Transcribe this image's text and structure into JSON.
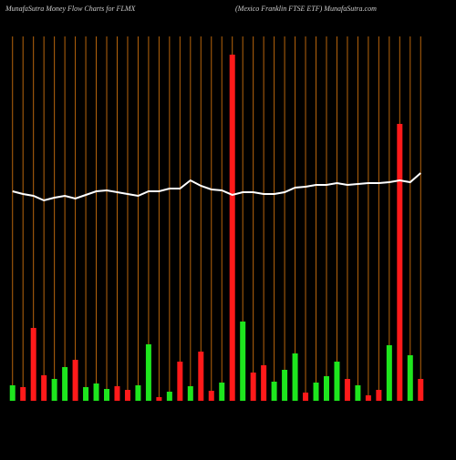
{
  "chart_data": {
    "type": "bar",
    "title": "MunafaSutra  Money Flow  Charts for FLMX",
    "subtitle": "(Mexico  Franklin  FTSE ETF) MunafaSutra.com",
    "categories": [
      null,
      null,
      null,
      null,
      null,
      null,
      null,
      null,
      null,
      null,
      null,
      null,
      null,
      null,
      null,
      null,
      null,
      null,
      null,
      null,
      null,
      null,
      null,
      null,
      null,
      null,
      null,
      null,
      null,
      null,
      null,
      null,
      null,
      null,
      null,
      null,
      null,
      null,
      null,
      null
    ],
    "values": [
      17,
      15,
      80,
      28,
      24,
      37,
      45,
      15,
      19,
      13,
      16,
      12,
      17,
      62,
      4,
      10,
      43,
      16,
      54,
      11,
      20,
      380,
      87,
      31,
      39,
      21,
      34,
      52,
      9,
      20,
      27,
      43,
      24,
      17,
      6,
      12,
      61,
      304,
      50,
      24
    ],
    "bar_colors": [
      "#1ee61e",
      "#ff1a1a",
      "#ff1a1a",
      "#ff1a1a",
      "#1ee61e",
      "#1ee61e",
      "#ff1a1a",
      "#1ee61e",
      "#1ee61e",
      "#1ee61e",
      "#ff1a1a",
      "#ff1a1a",
      "#1ee61e",
      "#1ee61e",
      "#ff1a1a",
      "#1ee61e",
      "#ff1a1a",
      "#1ee61e",
      "#ff1a1a",
      "#ff1a1a",
      "#1ee61e",
      "#ff1a1a",
      "#1ee61e",
      "#ff1a1a",
      "#ff1a1a",
      "#1ee61e",
      "#1ee61e",
      "#1ee61e",
      "#ff1a1a",
      "#1ee61e",
      "#1ee61e",
      "#1ee61e",
      "#ff1a1a",
      "#1ee61e",
      "#ff1a1a",
      "#ff1a1a",
      "#1ee61e",
      "#ff1a1a",
      "#1ee61e",
      "#ff1a1a"
    ],
    "ylim": [
      0,
      400
    ],
    "line": {
      "color": "#ffffff",
      "axis": "y2",
      "values": [
        230,
        227,
        225,
        220,
        223,
        225,
        222,
        226,
        230,
        231,
        229,
        227,
        225,
        230,
        230,
        233,
        233,
        242,
        236,
        232,
        231,
        226,
        229,
        229,
        227,
        227,
        229,
        234,
        235,
        237,
        237,
        239,
        237,
        238,
        239,
        239,
        240,
        242,
        240,
        250
      ]
    },
    "y2lim": [
      0,
      400
    ],
    "grid": true,
    "grid_color": "#b8650c",
    "background": "#000000"
  }
}
